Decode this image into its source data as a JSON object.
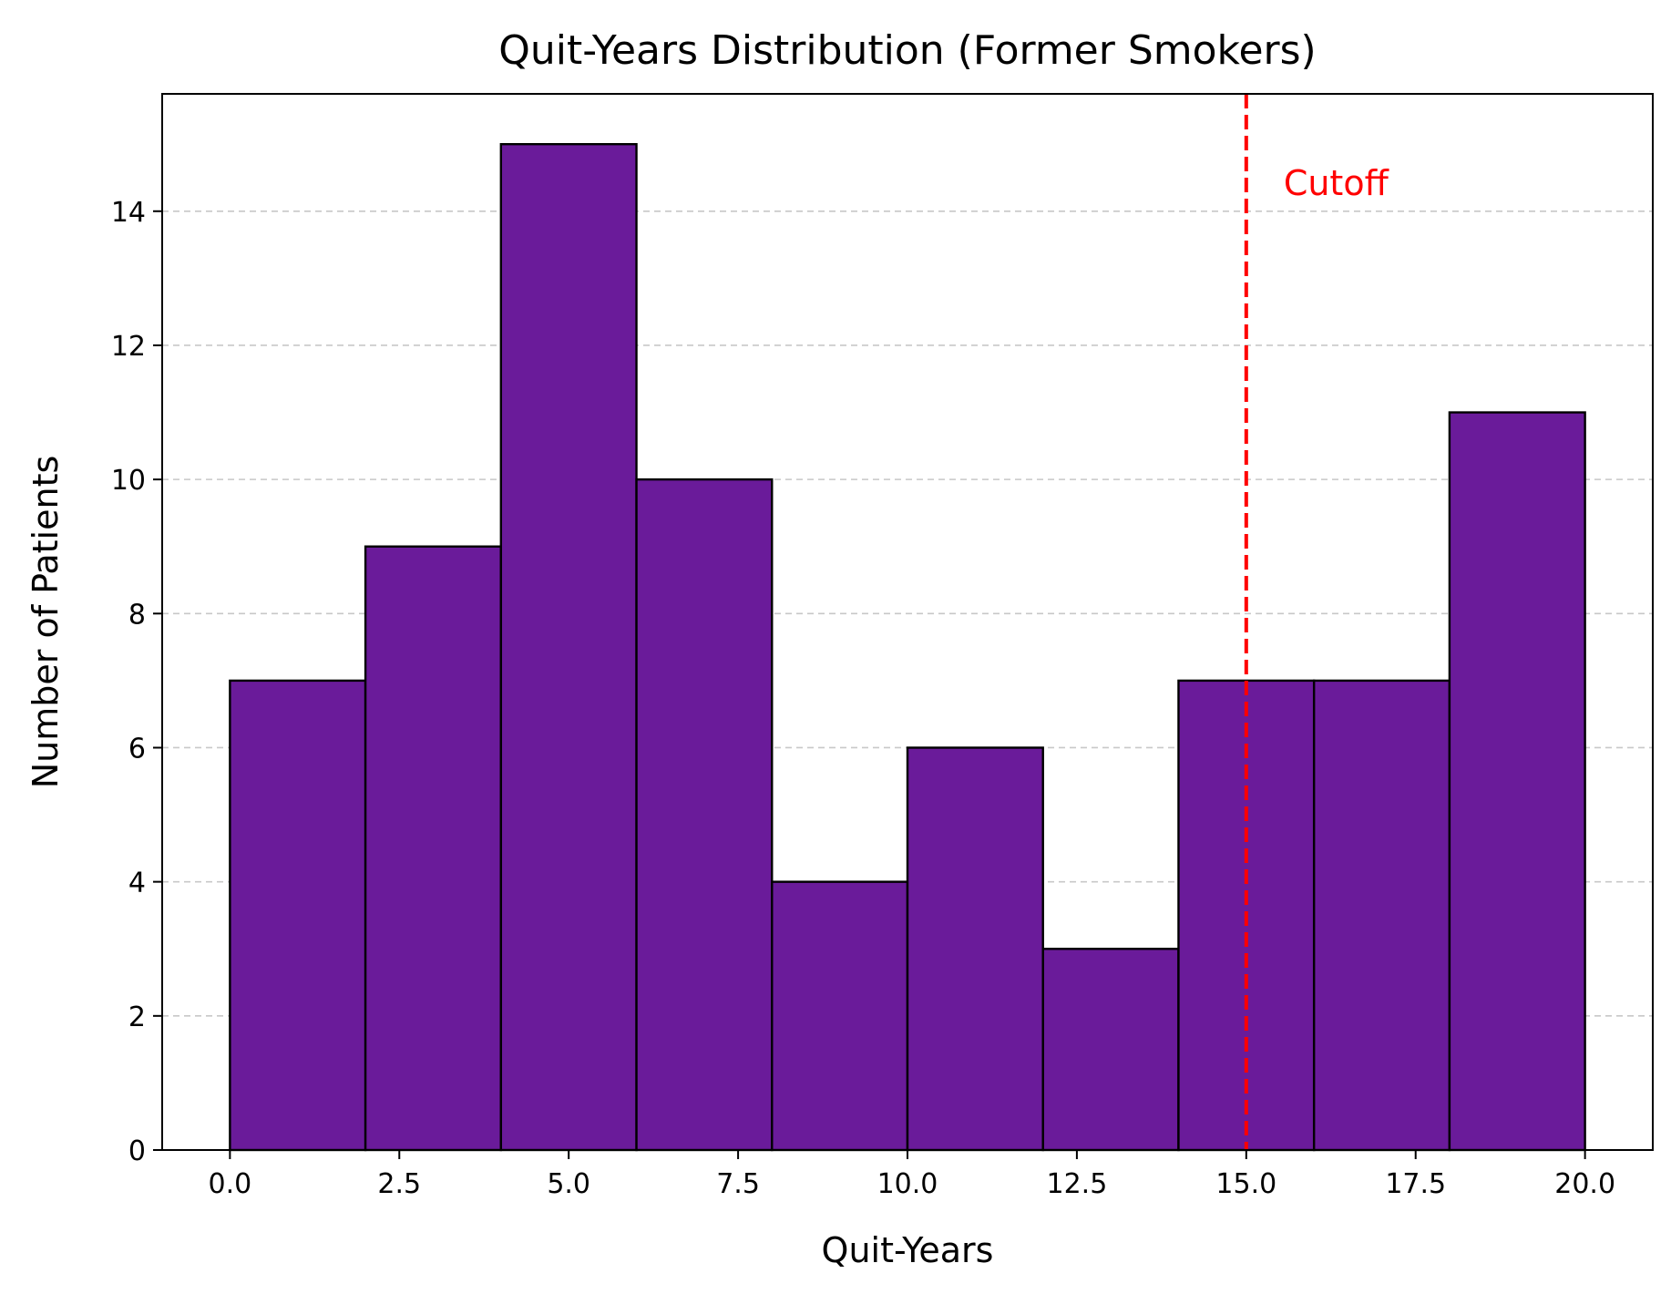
{
  "chart_data": {
    "type": "bar",
    "title": "Quit-Years Distribution (Former Smokers)",
    "xlabel": "Quit-Years",
    "ylabel": "Number of Patients",
    "bins": [
      {
        "x0": 0,
        "x1": 2,
        "count": 7
      },
      {
        "x0": 2,
        "x1": 4,
        "count": 9
      },
      {
        "x0": 4,
        "x1": 6,
        "count": 15
      },
      {
        "x0": 6,
        "x1": 8,
        "count": 10
      },
      {
        "x0": 8,
        "x1": 10,
        "count": 4
      },
      {
        "x0": 10,
        "x1": 12,
        "count": 6
      },
      {
        "x0": 12,
        "x1": 14,
        "count": 3
      },
      {
        "x0": 14,
        "x1": 16,
        "count": 7
      },
      {
        "x0": 16,
        "x1": 18,
        "count": 7
      },
      {
        "x0": 18,
        "x1": 20,
        "count": 11
      }
    ],
    "xlim": [
      -1,
      21
    ],
    "ylim": [
      0,
      15.75
    ],
    "xticks": [
      0,
      2.5,
      5,
      7.5,
      10,
      12.5,
      15,
      17.5,
      20
    ],
    "xtick_labels": [
      "0.0",
      "2.5",
      "5.0",
      "7.5",
      "10.0",
      "12.5",
      "15.0",
      "17.5",
      "20.0"
    ],
    "yticks": [
      0,
      2,
      4,
      6,
      8,
      10,
      12,
      14
    ],
    "ytick_labels": [
      "0",
      "2",
      "4",
      "6",
      "8",
      "10",
      "12",
      "14"
    ],
    "grid": "y-dashed",
    "bar_color": "#6a1b9a",
    "bar_edge_color": "#000000",
    "cutoff": {
      "x": 15,
      "label": "Cutoff",
      "color": "#ff0000",
      "style": "dashed"
    }
  }
}
